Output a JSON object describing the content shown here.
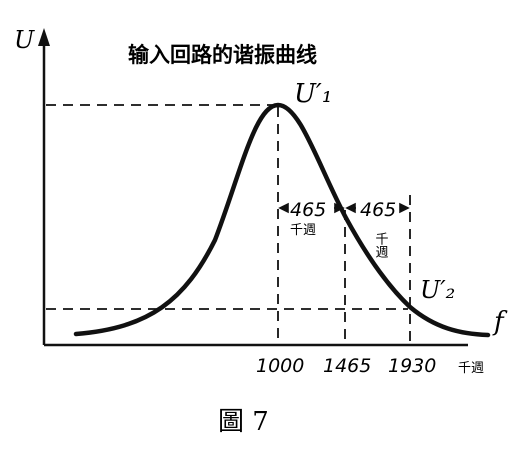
{
  "figure": {
    "title": "输入回路的谐振曲线",
    "y_axis_label": "U",
    "x_axis_label": "f",
    "peak_label": "U′₁",
    "second_label": "U′₂",
    "x_ticks": [
      "1000",
      "1465",
      "1930"
    ],
    "x_unit": "千週",
    "bandwidth_left": "465",
    "bandwidth_left_unit": "千週",
    "bandwidth_right": "465",
    "bandwidth_right_unit": "千週",
    "caption": "圖 7"
  }
}
